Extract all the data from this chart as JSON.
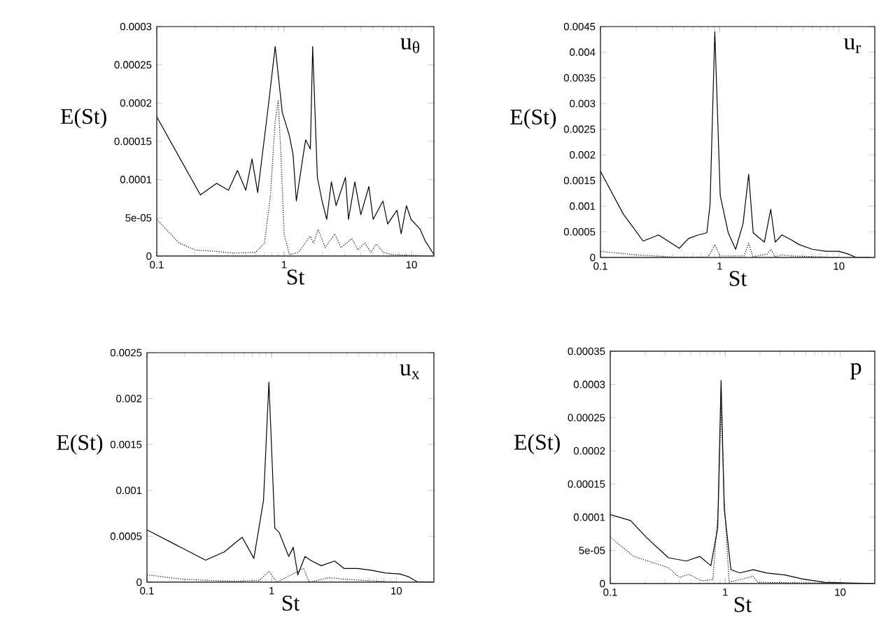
{
  "chart_data": [
    {
      "type": "line",
      "xlabel": "St",
      "ylabel": "E(St)",
      "log": "x",
      "xlim": [
        0.1,
        15
      ],
      "xticks": [
        0.1,
        1,
        10
      ],
      "ylim": [
        0,
        0.0003
      ],
      "yticks": [
        0,
        {
          "value": 5e-05,
          "label": "5e-05"
        },
        0.0001,
        0.00015,
        0.0002,
        0.00025,
        0.0003
      ],
      "annotations": [
        "u$_{θ}$"
      ],
      "series": [
        {
          "color": "#000000",
          "line_style": "solid",
          "x": [
            0.1,
            0.22,
            0.295,
            0.366,
            0.43,
            0.5,
            0.56,
            0.62,
            0.75,
            0.851,
            0.966,
            1.097,
            1.175,
            1.247,
            1.415,
            1.476,
            1.607,
            1.675,
            1.824,
            1.986,
            2.16,
            2.35,
            2.56,
            3.03,
            3.2,
            3.59,
            4.0,
            4.63,
            5.0,
            5.97,
            6.5,
            7.69,
            8.3,
            9.12,
            9.91,
            11.7,
            12.8,
            15
          ],
          "values": [
            0.000182,
            8e-05,
            9.5e-05,
            8.6e-05,
            0.000112,
            8.6e-05,
            0.000127,
            8.3e-05,
            0.000195,
            0.000274,
            0.000188,
            0.000158,
            0.000133,
            7.2e-05,
            0.000133,
            0.000152,
            0.00014,
            0.000274,
            0.000103,
            7.2e-05,
            4.8e-05,
            9.7e-05,
            6.6e-05,
            0.000103,
            4.8e-05,
            9.7e-05,
            5.4e-05,
            9.1e-05,
            4.8e-05,
            7.2e-05,
            4.2e-05,
            6e-05,
            2.9e-05,
            6.6e-05,
            4.8e-05,
            3.5e-05,
            2e-05,
            2e-06
          ]
        },
        {
          "color": "#000000",
          "line_style": "dotted",
          "x": [
            0.1,
            0.15,
            0.2,
            0.3,
            0.4,
            0.6,
            0.7,
            0.78,
            0.85,
            0.9,
            0.95,
            1.0,
            1.1,
            1.3,
            1.6,
            1.7,
            1.85,
            2.1,
            2.5,
            2.8,
            3.4,
            3.8,
            4.3,
            4.8,
            5.3,
            6,
            7,
            10,
            15
          ],
          "values": [
            4.8e-05,
            1.7e-05,
            8e-06,
            6e-06,
            4e-06,
            5e-06,
            1.7e-05,
            7.8e-05,
            0.000176,
            0.000204,
            0.000121,
            2.9e-05,
            2e-06,
            5e-06,
            2.6e-05,
            1.7e-05,
            3.5e-05,
            1.1e-05,
            2.9e-05,
            1.1e-05,
            2.3e-05,
            8e-06,
            1.7e-05,
            5e-06,
            1.6e-05,
            5e-06,
            2e-06,
            1e-06,
            0
          ]
        }
      ]
    },
    {
      "type": "line",
      "xlabel": "St",
      "ylabel": "E(St)",
      "log": "x",
      "xlim": [
        0.1,
        20
      ],
      "xticks": [
        0.1,
        1,
        10
      ],
      "ylim": [
        0,
        0.0045
      ],
      "yticks": [
        0,
        0.0005,
        0.001,
        0.0015,
        0.002,
        0.0025,
        0.003,
        0.0035,
        0.004,
        0.0045
      ],
      "annotations": [
        "u$_{r}$"
      ],
      "series": [
        {
          "color": "#000000",
          "line_style": "solid",
          "x": [
            0.1,
            0.155,
            0.228,
            0.307,
            0.458,
            0.548,
            0.66,
            0.78,
            0.83,
            0.91,
            1.01,
            1.18,
            1.36,
            1.57,
            1.75,
            1.91,
            2.37,
            2.68,
            2.92,
            3.33,
            3.94,
            4.65,
            6.0,
            7.8,
            10.0,
            11.9,
            14.0,
            18.3
          ],
          "values": [
            0.00168,
            0.00085,
            0.00032,
            0.00044,
            0.00018,
            0.00037,
            0.00044,
            0.00048,
            0.00103,
            0.0044,
            0.00121,
            0.00048,
            0.00016,
            0.00066,
            0.00162,
            0.00048,
            0.0003,
            0.00094,
            0.0003,
            0.00044,
            0.00035,
            0.00025,
            0.00016,
            0.00012,
            0.00012,
            7e-05,
            0,
            0
          ]
        },
        {
          "color": "#000000",
          "line_style": "dotted",
          "x": [
            0.1,
            0.2,
            0.4,
            0.8,
            0.91,
            1.0,
            1.6,
            1.75,
            1.9,
            2.5,
            2.7,
            2.9,
            3.3,
            4,
            10
          ],
          "values": [
            0.00012,
            5e-05,
            1e-05,
            1e-05,
            0.00025,
            3e-05,
            3e-05,
            0.00028,
            1e-05,
            7e-05,
            0.00016,
            1e-05,
            5e-05,
            3e-05,
            0
          ]
        }
      ]
    },
    {
      "type": "line",
      "xlabel": "St",
      "ylabel": "E(St)",
      "log": "x",
      "xlim": [
        0.1,
        20
      ],
      "xticks": [
        0.1,
        1,
        10
      ],
      "ylim": [
        0,
        0.0025
      ],
      "yticks": [
        0,
        0.0005,
        0.001,
        0.0015,
        0.002,
        0.0025
      ],
      "annotations": [
        "u$_{x}$"
      ],
      "series": [
        {
          "color": "#000000",
          "line_style": "solid",
          "x": [
            0.1,
            0.295,
            0.416,
            0.58,
            0.72,
            0.86,
            0.95,
            1.06,
            1.15,
            1.37,
            1.49,
            1.62,
            1.85,
            2.1,
            2.5,
            3.2,
            3.8,
            4.9,
            6.3,
            8.2,
            10.6,
            12.5,
            14.9,
            19.3
          ],
          "values": [
            0.00057,
            0.00024,
            0.00033,
            0.00049,
            0.00026,
            0.00089,
            0.00218,
            0.00059,
            0.00054,
            0.00028,
            0.00038,
            8e-05,
            0.00028,
            0.00023,
            0.00018,
            0.00023,
            0.00015,
            0.00015,
            0.00013,
            0.0001,
            9e-05,
            6e-05,
            0,
            0
          ]
        },
        {
          "color": "#000000",
          "line_style": "dotted",
          "x": [
            0.1,
            0.2,
            0.5,
            0.8,
            0.95,
            1.1,
            1.8,
            2.0,
            2.9,
            4,
            10
          ],
          "values": [
            8e-05,
            3e-05,
            1e-05,
            2e-05,
            0.00012,
            0,
            0.00015,
            0,
            5e-05,
            3e-05,
            0
          ]
        }
      ]
    },
    {
      "type": "line",
      "xlabel": "St",
      "ylabel": "E(St)",
      "log": "x",
      "xlim": [
        0.1,
        20
      ],
      "xticks": [
        0.1,
        1,
        10
      ],
      "ylim": [
        0,
        0.00035
      ],
      "yticks": [
        0,
        {
          "value": 5e-05,
          "label": "5e-05"
        },
        0.0001,
        0.00015,
        0.0002,
        0.00025,
        0.0003,
        0.00035
      ],
      "annotations": [
        "p"
      ],
      "series": [
        {
          "color": "#000000",
          "line_style": "solid",
          "x": [
            0.1,
            0.15,
            0.205,
            0.32,
            0.458,
            0.6,
            0.75,
            0.86,
            0.92,
            0.98,
            1.12,
            1.34,
            1.75,
            2.3,
            3.3,
            4.7,
            7.3,
            11.5,
            19.7
          ],
          "values": [
            0.000104,
            9.5e-05,
            7e-05,
            3.9e-05,
            3.4e-05,
            4.1e-05,
            2.7e-05,
            8.4e-05,
            0.000306,
            0.000113,
            2.1e-05,
            1.6e-05,
            2.1e-05,
            1.6e-05,
            1.3e-05,
            7e-06,
            2e-06,
            1e-06,
            0
          ]
        },
        {
          "color": "#000000",
          "line_style": "dotted",
          "x": [
            0.1,
            0.16,
            0.32,
            0.4,
            0.48,
            0.63,
            0.78,
            0.87,
            0.92,
            0.98,
            1.08,
            1.75,
            1.92,
            19.7
          ],
          "values": [
            7e-05,
            4.1e-05,
            2.4e-05,
            9e-06,
            1.4e-05,
            4e-06,
            6e-06,
            0.000113,
            0.00027,
            0.000127,
            2e-06,
            1.1e-05,
            2e-06,
            0
          ]
        }
      ]
    }
  ]
}
